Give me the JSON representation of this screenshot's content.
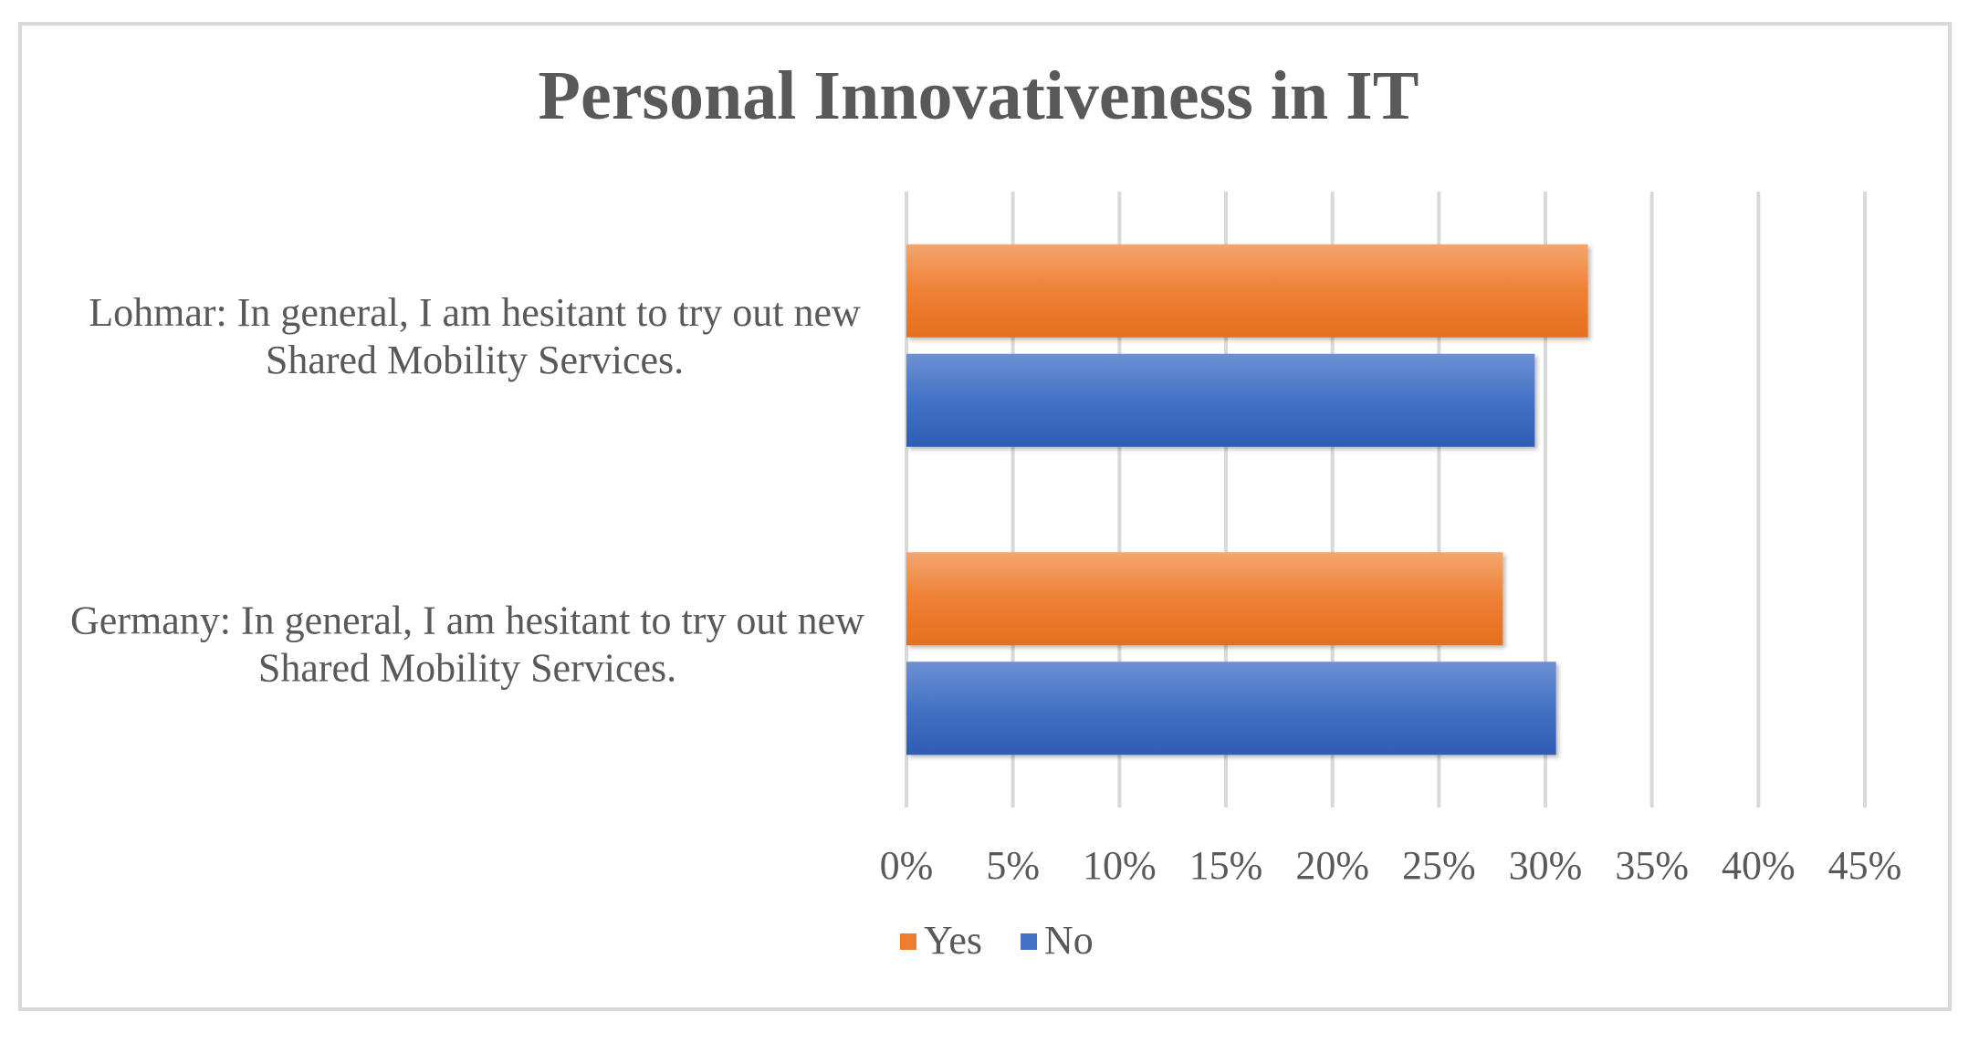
{
  "chart_data": {
    "type": "bar",
    "orientation": "horizontal",
    "title": "Personal Innovativeness in IT",
    "categories": [
      [
        "Lohmar: In general, I am hesitant to try out new",
        "Shared Mobility Services."
      ],
      [
        "Germany: In general, I am hesitant to try out new",
        "Shared Mobility Services."
      ]
    ],
    "series": [
      {
        "name": "Yes",
        "color": "#ed7d31",
        "values": [
          32,
          28
        ]
      },
      {
        "name": "No",
        "color": "#4472c4",
        "values": [
          29.5,
          30.5
        ]
      }
    ],
    "xlim": [
      0,
      45
    ],
    "xticks": [
      "0%",
      "5%",
      "10%",
      "15%",
      "20%",
      "25%",
      "30%",
      "35%",
      "40%",
      "45%"
    ],
    "grid": true,
    "legend_position": "bottom",
    "xlabel": "",
    "ylabel": ""
  }
}
